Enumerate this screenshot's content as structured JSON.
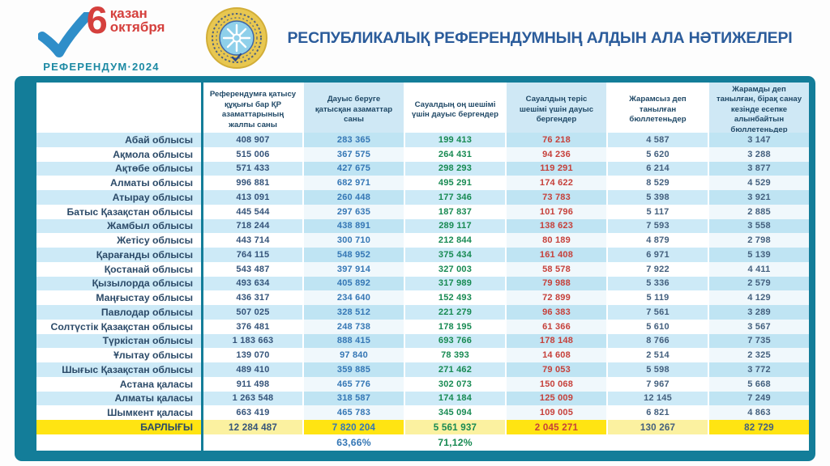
{
  "header": {
    "logo": {
      "day": "6",
      "month_kk": "қазан",
      "month_ru": "октября",
      "subtitle": "РЕФЕРЕНДУМ·2024"
    },
    "emblem": "central-election-commission-seal",
    "title": "РЕСПУБЛИКАЛЫҚ РЕФЕРЕНДУМНЫҢ АЛДЫН АЛА НӘТИЖЕЛЕРІ"
  },
  "table": {
    "columns": [
      "Референдумға қатысу құқығы бар ҚР азаматтарының жалпы саны",
      "Дауыс беруге қатысқан азаматтар саны",
      "Сауалдың оң шешімі үшін дауыс бергендер",
      "Сауалдың теріс шешімі үшін дауыс бергендер",
      "Жарамсыз деп танылған бюллетеньдер",
      "Жарамды деп танылған, бірақ санау кезінде есепке алынбайтын бюллетеньдер"
    ],
    "rows": [
      {
        "region": "Абай облысы",
        "values": [
          "408 907",
          "283 365",
          "199 413",
          "76 218",
          "4 587",
          "3 147"
        ]
      },
      {
        "region": "Ақмола облысы",
        "values": [
          "515 006",
          "367 575",
          "264 431",
          "94 236",
          "5 620",
          "3 288"
        ]
      },
      {
        "region": "Ақтөбе облысы",
        "values": [
          "571 433",
          "427 675",
          "298 293",
          "119 291",
          "6 214",
          "3 877"
        ]
      },
      {
        "region": "Алматы облысы",
        "values": [
          "996 881",
          "682 971",
          "495 291",
          "174 622",
          "8 529",
          "4 529"
        ]
      },
      {
        "region": "Атырау облысы",
        "values": [
          "413 091",
          "260 448",
          "177 346",
          "73 783",
          "5 398",
          "3 921"
        ]
      },
      {
        "region": "Батыс Қазақстан облысы",
        "values": [
          "445 544",
          "297 635",
          "187 837",
          "101 796",
          "5 117",
          "2 885"
        ]
      },
      {
        "region": "Жамбыл облысы",
        "values": [
          "718 244",
          "438 891",
          "289 117",
          "138 623",
          "7 593",
          "3 558"
        ]
      },
      {
        "region": "Жетісу облысы",
        "values": [
          "443 714",
          "300 710",
          "212 844",
          "80 189",
          "4 879",
          "2 798"
        ]
      },
      {
        "region": "Қарағанды облысы",
        "values": [
          "764 115",
          "548 952",
          "375 434",
          "161 408",
          "6 971",
          "5 139"
        ]
      },
      {
        "region": "Қостанай облысы",
        "values": [
          "543 487",
          "397 914",
          "327 003",
          "58 578",
          "7 922",
          "4 411"
        ]
      },
      {
        "region": "Қызылорда облысы",
        "values": [
          "493 634",
          "405 892",
          "317 989",
          "79 988",
          "5 336",
          "2 579"
        ]
      },
      {
        "region": "Маңғыстау облысы",
        "values": [
          "436 317",
          "234 640",
          "152 493",
          "72 899",
          "5 119",
          "4 129"
        ]
      },
      {
        "region": "Павлодар облысы",
        "values": [
          "507 025",
          "328 512",
          "221 279",
          "96 383",
          "7 561",
          "3 289"
        ]
      },
      {
        "region": "Солтүстік Қазақстан облысы",
        "values": [
          "376 481",
          "248 738",
          "178 195",
          "61 366",
          "5 610",
          "3 567"
        ]
      },
      {
        "region": "Түркістан облысы",
        "values": [
          "1 183 663",
          "888 415",
          "693 766",
          "178 148",
          "8 766",
          "7 735"
        ]
      },
      {
        "region": "Ұлытау облысы",
        "values": [
          "139 070",
          "97 840",
          "78 393",
          "14 608",
          "2 514",
          "2 325"
        ]
      },
      {
        "region": "Шығыс Қазақстан облысы",
        "values": [
          "489 410",
          "359 885",
          "271 462",
          "79 053",
          "5 598",
          "3 772"
        ]
      },
      {
        "region": "Астана қаласы",
        "values": [
          "911 498",
          "465 776",
          "302 073",
          "150 068",
          "7 967",
          "5 668"
        ]
      },
      {
        "region": "Алматы қаласы",
        "values": [
          "1 263 548",
          "318 587",
          "174 184",
          "125 009",
          "12 145",
          "7 249"
        ]
      },
      {
        "region": "Шымкент қаласы",
        "values": [
          "663 419",
          "465 783",
          "345 094",
          "109 005",
          "6 821",
          "4 863"
        ]
      }
    ],
    "total": {
      "label": "БАРЛЫҒЫ",
      "values": [
        "12 284 487",
        "7 820 204",
        "5 561 937",
        "2 045 271",
        "130 267",
        "82 729"
      ]
    },
    "percent_row": [
      "",
      "63,66%",
      "71,12%",
      "",
      "",
      ""
    ]
  },
  "colors": {
    "panel_teal": "#137d99",
    "stripe_blue": "#cdeaf7",
    "stripe_blue_deep": "#bfe4f3",
    "total_yellow": "#ffe412",
    "total_yellow_pale": "#fbf1a0",
    "header_tint": "#cfe8f5",
    "title_blue": "#2b5c9b",
    "value_navy": "#35547a",
    "value_blue": "#3577b5",
    "value_green": "#178a52",
    "value_red": "#c6403a",
    "value_slate": "#44607e",
    "logo_red": "#d5403d",
    "logo_check_blue": "#2f8ec9",
    "logo_teal": "#1d8aa4",
    "emblem_gold": "#e8c750",
    "emblem_blue": "#8fd0ea"
  }
}
